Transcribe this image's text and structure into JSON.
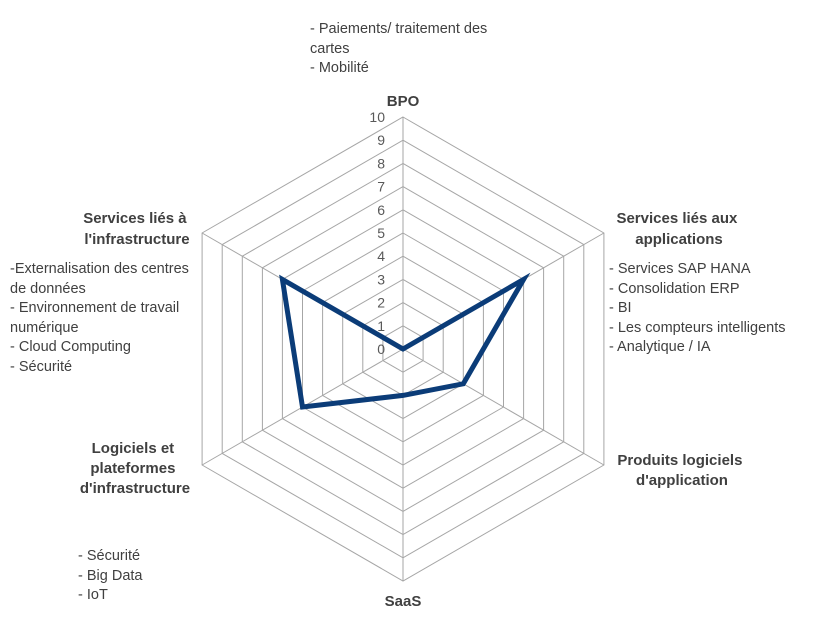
{
  "chart_data": {
    "type": "radar",
    "title": "",
    "axes": [
      "BPO",
      "Services liés aux applications",
      "Produits logiciels d'application",
      "SaaS",
      "Logiciels et plateformes d'infrastructure",
      "Services liés à l'infrastructure"
    ],
    "ticks": [
      "0",
      "1",
      "2",
      "3",
      "4",
      "5",
      "6",
      "7",
      "8",
      "9",
      "10"
    ],
    "range": [
      0,
      10
    ],
    "series": [
      {
        "name": "",
        "color": "#0b3c78",
        "values": [
          0,
          6,
          3,
          2,
          5,
          6
        ]
      }
    ],
    "grid_color": "#a6a6a6"
  },
  "labels": {
    "bpo": "BPO",
    "app_services": [
      "Services liés aux",
      "applications"
    ],
    "app_products": [
      "Produits logiciels",
      "d'application"
    ],
    "saas": "SaaS",
    "infra_software": [
      "Logiciels et",
      "plateformes",
      "d'infrastructure"
    ],
    "infra_services": [
      "Services liés à",
      "l'infrastructure"
    ]
  },
  "notes": {
    "bpo": [
      "- Paiements/ traitement des",
      "cartes",
      "- Mobilité"
    ],
    "app_services": [
      "- Services SAP HANA",
      "- Consolidation ERP",
      "- BI",
      "- Les compteurs intelligents",
      "- Analytique / IA"
    ],
    "infra_services": [
      "-Externalisation des centres",
      "de données",
      "- Environnement de travail",
      "numérique",
      "- Cloud Computing",
      "- Sécurité"
    ],
    "infra_software": [
      "- Sécurité",
      "- Big Data",
      "- IoT"
    ]
  }
}
